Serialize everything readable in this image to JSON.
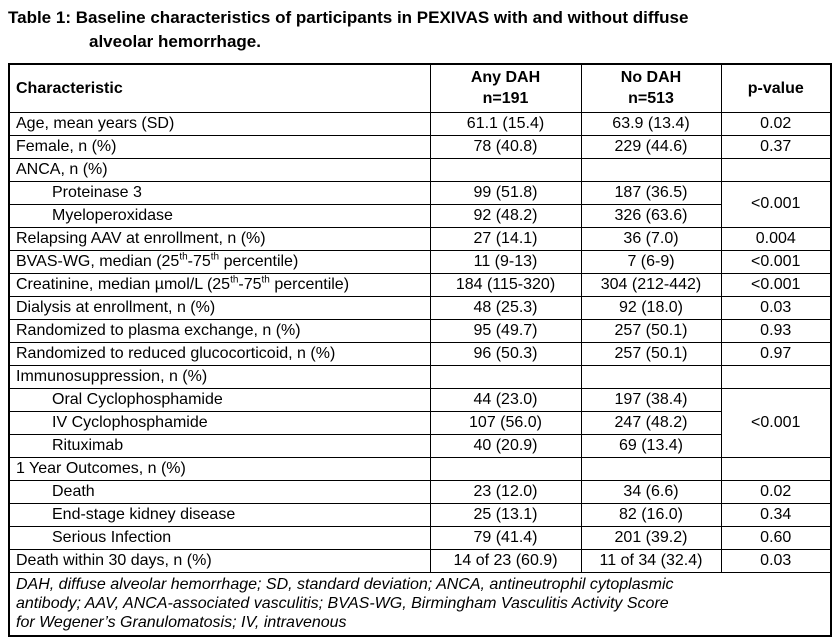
{
  "title": {
    "line1": "Table 1: Baseline characteristics of participants in PEXIVAS with and without diffuse",
    "line2": "alveolar hemorrhage."
  },
  "table": {
    "headers": {
      "characteristic": "Characteristic",
      "any_dah_line1": "Any DAH",
      "any_dah_line2": "n=191",
      "no_dah_line1": "No DAH",
      "no_dah_line2": "n=513",
      "pvalue": "p-value"
    },
    "rows": [
      {
        "label": "Age, mean years (SD)",
        "indent": false,
        "any_dah": "61.1 (15.4)",
        "no_dah": "63.9 (13.4)",
        "p": "0.02"
      },
      {
        "label": "Female, n (%)",
        "indent": false,
        "any_dah": "78 (40.8)",
        "no_dah": "229 (44.6)",
        "p": "0.37"
      },
      {
        "label": "ANCA, n (%)",
        "indent": false,
        "any_dah": "",
        "no_dah": "",
        "p": ""
      },
      {
        "label": "Proteinase 3",
        "indent": true,
        "any_dah": "99 (51.8)",
        "no_dah": "187 (36.5)",
        "p": "<0.001",
        "p_rowspan": 2
      },
      {
        "label": "Myeloperoxidase",
        "indent": true,
        "any_dah": "92 (48.2)",
        "no_dah": "326 (63.6)",
        "p_skip": true
      },
      {
        "label": "Relapsing AAV at enrollment, n (%)",
        "indent": false,
        "any_dah": "27 (14.1)",
        "no_dah": "36 (7.0)",
        "p": "0.004"
      },
      {
        "label": "BVAS-WG, median (25th-75th percentile)",
        "label_parts": [
          "BVAS-WG, median (25",
          {
            "sup": "th"
          },
          "-75",
          {
            "sup": "th"
          },
          " percentile)"
        ],
        "indent": false,
        "any_dah": "11 (9-13)",
        "no_dah": "7 (6-9)",
        "p": "<0.001"
      },
      {
        "label": "Creatinine, median µmol/L (25th-75th percentile)",
        "label_parts": [
          "Creatinine, median µmol/L (25",
          {
            "sup": "th"
          },
          "-75",
          {
            "sup": "th"
          },
          " percentile)"
        ],
        "indent": false,
        "any_dah": "184 (115-320)",
        "no_dah": "304 (212-442)",
        "p": "<0.001"
      },
      {
        "label": "Dialysis at enrollment, n (%)",
        "indent": false,
        "any_dah": "48 (25.3)",
        "no_dah": "92 (18.0)",
        "p": "0.03"
      },
      {
        "label": "Randomized to plasma exchange, n (%)",
        "indent": false,
        "any_dah": "95 (49.7)",
        "no_dah": "257 (50.1)",
        "p": "0.93"
      },
      {
        "label": "Randomized to reduced glucocorticoid, n (%)",
        "indent": false,
        "any_dah": "96 (50.3)",
        "no_dah": "257 (50.1)",
        "p": "0.97"
      },
      {
        "label": "Immunosuppression, n (%)",
        "indent": false,
        "any_dah": "",
        "no_dah": "",
        "p": ""
      },
      {
        "label": "Oral Cyclophosphamide",
        "indent": true,
        "any_dah": "44 (23.0)",
        "no_dah": "197 (38.4)",
        "p": "<0.001",
        "p_rowspan": 3
      },
      {
        "label": "IV Cyclophosphamide",
        "indent": true,
        "any_dah": "107 (56.0)",
        "no_dah": "247 (48.2)",
        "p_skip": true
      },
      {
        "label": "Rituximab",
        "indent": true,
        "any_dah": "40 (20.9)",
        "no_dah": "69 (13.4)",
        "p_skip": true
      },
      {
        "label": "1 Year Outcomes, n (%)",
        "indent": false,
        "any_dah": "",
        "no_dah": "",
        "p": ""
      },
      {
        "label": "Death",
        "indent": true,
        "any_dah": "23 (12.0)",
        "no_dah": "34 (6.6)",
        "p": "0.02"
      },
      {
        "label": "End-stage kidney disease",
        "indent": true,
        "any_dah": "25 (13.1)",
        "no_dah": "82 (16.0)",
        "p": "0.34"
      },
      {
        "label": "Serious Infection",
        "indent": true,
        "any_dah": "79 (41.4)",
        "no_dah": "201 (39.2)",
        "p": "0.60"
      },
      {
        "label": "Death within 30 days, n (%)",
        "indent": false,
        "any_dah": "14 of 23 (60.9)",
        "no_dah": "11 of 34 (32.4)",
        "p": "0.03"
      }
    ]
  },
  "footnote_lines": [
    "DAH, diffuse alveolar hemorrhage; SD, standard deviation; ANCA, antineutrophil cytoplasmic",
    "antibody; AAV, ANCA-associated vasculitis; BVAS-WG, Birmingham Vasculitis Activity Score",
    "for Wegener’s Granulomatosis; IV, intravenous"
  ]
}
